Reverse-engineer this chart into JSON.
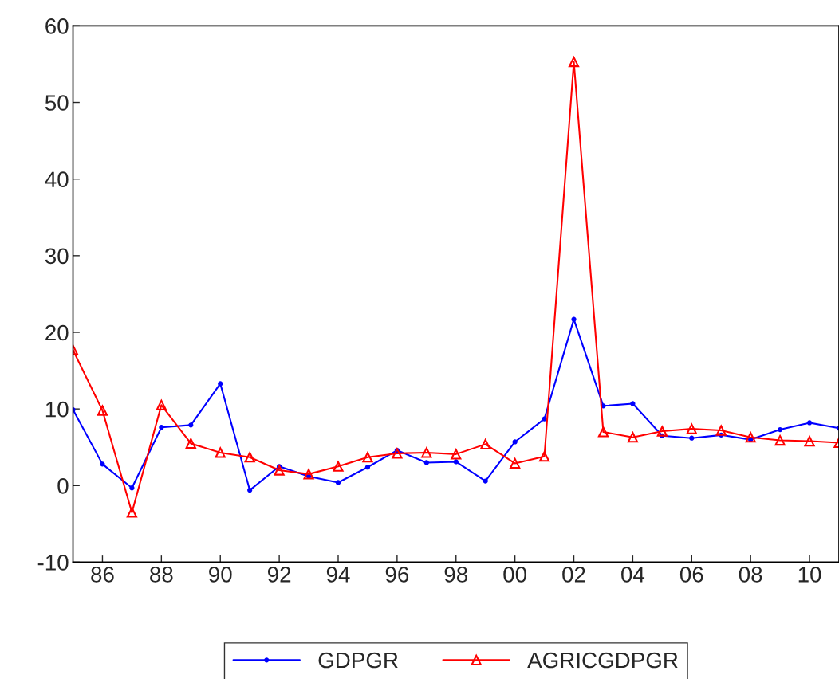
{
  "chart_data": {
    "type": "line",
    "x": [
      1985,
      1986,
      1987,
      1988,
      1989,
      1990,
      1991,
      1992,
      1993,
      1994,
      1995,
      1996,
      1997,
      1998,
      1999,
      2000,
      2001,
      2002,
      2003,
      2004,
      2005,
      2006,
      2007,
      2008,
      2009,
      2010,
      2011
    ],
    "series": [
      {
        "name": "GDPGR",
        "color": "#0000ff",
        "marker": "circle",
        "values": [
          9.9,
          2.8,
          -0.3,
          7.6,
          7.9,
          13.3,
          -0.6,
          2.5,
          1.2,
          0.4,
          2.4,
          4.6,
          3.0,
          3.1,
          0.6,
          5.7,
          8.7,
          21.7,
          10.4,
          10.7,
          6.5,
          6.2,
          6.6,
          6.0,
          7.3,
          8.2,
          7.5
        ]
      },
      {
        "name": "AGRICGDPGR",
        "color": "#ff0000",
        "marker": "triangle",
        "values": [
          17.7,
          9.8,
          -3.5,
          10.5,
          5.5,
          4.3,
          3.7,
          2.0,
          1.5,
          2.5,
          3.7,
          4.2,
          4.3,
          4.1,
          5.4,
          2.9,
          3.8,
          55.3,
          7.0,
          6.3,
          7.1,
          7.4,
          7.2,
          6.3,
          5.9,
          5.8,
          5.6
        ]
      }
    ],
    "xlim": [
      1985,
      2011
    ],
    "xticks": [
      {
        "value": 1986,
        "label": "86"
      },
      {
        "value": 1988,
        "label": "88"
      },
      {
        "value": 1990,
        "label": "90"
      },
      {
        "value": 1992,
        "label": "92"
      },
      {
        "value": 1994,
        "label": "94"
      },
      {
        "value": 1996,
        "label": "96"
      },
      {
        "value": 1998,
        "label": "98"
      },
      {
        "value": 2000,
        "label": "00"
      },
      {
        "value": 2002,
        "label": "02"
      },
      {
        "value": 2004,
        "label": "04"
      },
      {
        "value": 2006,
        "label": "06"
      },
      {
        "value": 2008,
        "label": "08"
      },
      {
        "value": 2010,
        "label": "10"
      }
    ],
    "ylim": [
      -10,
      60
    ],
    "yticks": [
      -10,
      0,
      10,
      20,
      30,
      40,
      50,
      60
    ],
    "legend": "bottom",
    "grid": false,
    "line_style": "solid"
  }
}
